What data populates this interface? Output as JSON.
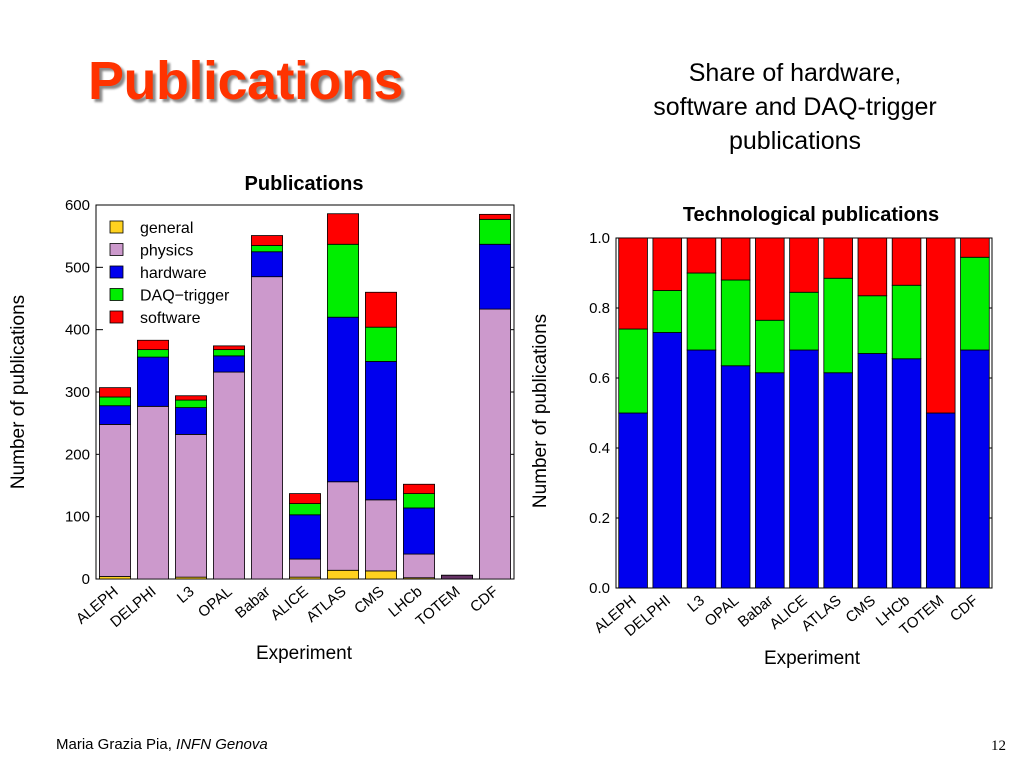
{
  "slide": {
    "title": "Publications",
    "subtitle_lines": [
      "Share of hardware,",
      "software and DAQ-trigger",
      "publications"
    ],
    "footer_author": "Maria Grazia Pia,",
    "footer_org": "INFN Genova",
    "page_number": "12"
  },
  "colors": {
    "title": "#ff3300",
    "general": "#ffd21f",
    "physics": "#cc99cc",
    "hardware": "#0000ee",
    "daq_trigger": "#00ee00",
    "software": "#ff0000",
    "totem_bar": "#663366"
  },
  "chart_data": [
    {
      "type": "bar",
      "stacked": true,
      "title": "Publications",
      "xlabel": "Experiment",
      "ylabel": "Number of publications",
      "ylim": [
        0,
        600
      ],
      "yticks": [
        "0",
        "100",
        "200",
        "300",
        "400",
        "500",
        "600"
      ],
      "categories": [
        "ALEPH",
        "DELPHI",
        "L3",
        "OPAL",
        "Babar",
        "ALICE",
        "ATLAS",
        "CMS",
        "LHCb",
        "TOTEM",
        "CDF"
      ],
      "legend_position": "top-left",
      "series": [
        {
          "name": "general",
          "color": "#ffd21f",
          "values": [
            4,
            0,
            3,
            0,
            0,
            3,
            14,
            13,
            2,
            0,
            0
          ]
        },
        {
          "name": "physics",
          "color": "#cc99cc",
          "values": [
            244,
            277,
            229,
            332,
            485,
            29,
            142,
            114,
            38,
            4,
            433
          ]
        },
        {
          "name": "hardware",
          "color": "#0000ee",
          "values": [
            30,
            79,
            43,
            26,
            40,
            71,
            264,
            222,
            74,
            1,
            104
          ]
        },
        {
          "name": "DAQ−trigger",
          "color": "#00ee00",
          "values": [
            14,
            12,
            12,
            10,
            10,
            18,
            117,
            55,
            23,
            0,
            40
          ]
        },
        {
          "name": "software",
          "color": "#ff0000",
          "values": [
            15,
            15,
            7,
            6,
            16,
            16,
            49,
            56,
            15,
            1,
            8
          ]
        }
      ]
    },
    {
      "type": "bar",
      "stacked": true,
      "title": "Technological publications",
      "xlabel": "Experiment",
      "ylabel": "Number of publications",
      "ylim": [
        0,
        1
      ],
      "yticks": [
        "0.0",
        "0.2",
        "0.4",
        "0.6",
        "0.8",
        "1.0"
      ],
      "categories": [
        "ALEPH",
        "DELPHI",
        "L3",
        "OPAL",
        "Babar",
        "ALICE",
        "ATLAS",
        "CMS",
        "LHCb",
        "TOTEM",
        "CDF"
      ],
      "series": [
        {
          "name": "hardware",
          "color": "#0000ee",
          "values": [
            0.5,
            0.73,
            0.68,
            0.635,
            0.615,
            0.68,
            0.615,
            0.67,
            0.655,
            0.5,
            0.68
          ]
        },
        {
          "name": "DAQ−trigger",
          "color": "#00ee00",
          "values": [
            0.24,
            0.12,
            0.22,
            0.245,
            0.15,
            0.165,
            0.27,
            0.165,
            0.21,
            0.0,
            0.265
          ]
        },
        {
          "name": "software",
          "color": "#ff0000",
          "values": [
            0.26,
            0.15,
            0.1,
            0.12,
            0.235,
            0.155,
            0.115,
            0.165,
            0.135,
            0.5,
            0.055
          ]
        }
      ]
    }
  ]
}
